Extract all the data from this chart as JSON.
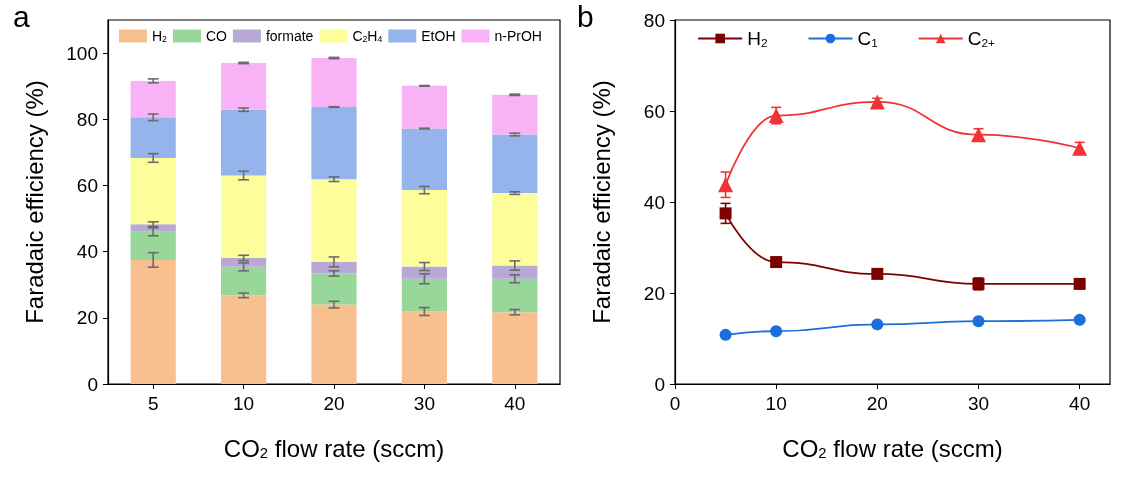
{
  "chart_data": [
    {
      "type": "bar",
      "title": "a",
      "stacked": true,
      "categories": [
        "5",
        "10",
        "20",
        "30",
        "40"
      ],
      "xlabel": "CO$_{2}$ flow rate (sccm)",
      "ylabel": "Faradaic efficiency (%)",
      "ylim": [
        0,
        110
      ],
      "yticks": [
        0,
        20,
        40,
        60,
        80,
        100
      ],
      "grid": false,
      "legend": "top",
      "series": [
        {
          "name": "H$_{2}$",
          "color": "#f9c08f",
          "values": [
            37.5,
            26.8,
            24.0,
            21.9,
            21.7
          ],
          "errors": [
            2.2,
            0.7,
            1.0,
            1.2,
            0.8
          ]
        },
        {
          "name": "CO",
          "color": "#98d79a",
          "values": [
            8.5,
            8.6,
            9.4,
            9.9,
            10.1
          ],
          "errors": [
            1.2,
            1.2,
            0.8,
            1.5,
            1.2
          ]
        },
        {
          "name": "formate",
          "color": "#b8a8d6",
          "values": [
            2.3,
            2.7,
            3.5,
            3.7,
            4.0
          ],
          "errors": [
            0.7,
            0.8,
            1.5,
            1.2,
            1.4
          ]
        },
        {
          "name": "C$_{2}$H$_{4}$",
          "color": "#fdfd9c",
          "values": [
            20.0,
            24.9,
            25.0,
            23.1,
            21.9
          ],
          "errors": [
            1.3,
            1.3,
            0.7,
            1.1,
            0.4
          ]
        },
        {
          "name": "EtOH",
          "color": "#96b4ec",
          "values": [
            12.3,
            19.9,
            21.8,
            18.6,
            17.7
          ],
          "errors": [
            1.0,
            0.5,
            0.1,
            0.1,
            0.4
          ]
        },
        {
          "name": "n-PrOH",
          "color": "#f8b3f6",
          "values": [
            11.0,
            14.1,
            14.8,
            12.9,
            12.0
          ],
          "errors": [
            0.6,
            0.2,
            0.2,
            0.1,
            0.2
          ]
        }
      ]
    },
    {
      "type": "line",
      "title": "b",
      "x": [
        5,
        10,
        20,
        30,
        40
      ],
      "xlim": [
        0,
        43
      ],
      "xticks": [
        0,
        10,
        20,
        30,
        40
      ],
      "xlabel": "CO$_{2}$ flow rate (sccm)",
      "ylabel": "Faradaic efficiency (%)",
      "ylim": [
        0,
        80
      ],
      "yticks": [
        0,
        20,
        40,
        60,
        80
      ],
      "grid": false,
      "legend": "top",
      "series": [
        {
          "name": "H$_{2}$",
          "color": "#7b0000",
          "marker": "square",
          "values": [
            37.5,
            26.8,
            24.2,
            22.0,
            22.0
          ],
          "errors": [
            2.2,
            0.7,
            0.9,
            1.3,
            0.5
          ]
        },
        {
          "name": "C$_{1}$",
          "color": "#1a6fdb",
          "marker": "circle",
          "values": [
            10.8,
            11.6,
            13.1,
            13.8,
            14.1
          ]
        },
        {
          "name": "C$_{2+}$",
          "color": "#ee3434",
          "marker": "triangle",
          "values": [
            43.8,
            59.0,
            62.0,
            54.8,
            51.8
          ],
          "errors": [
            2.8,
            1.8,
            0.8,
            1.3,
            1.3
          ]
        }
      ]
    }
  ]
}
